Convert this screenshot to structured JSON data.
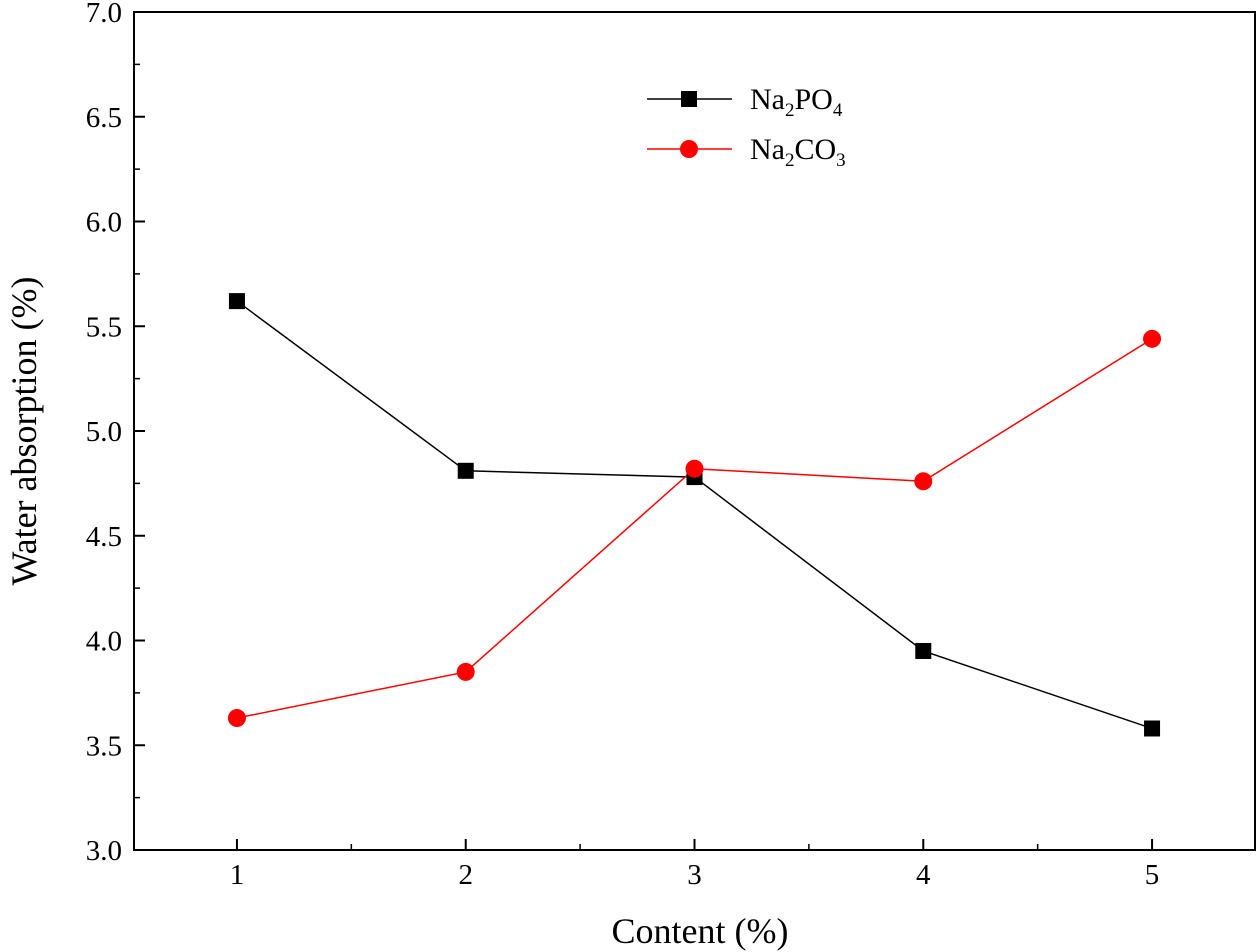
{
  "chart_data": {
    "type": "line",
    "xlabel": "Content (%)",
    "ylabel": "Water absorption (%)",
    "xlim": [
      0.55,
      5.45
    ],
    "ylim": [
      3.0,
      7.0
    ],
    "x": [
      1,
      2,
      3,
      4,
      5
    ],
    "x_ticks": [
      "1",
      "2",
      "3",
      "4",
      "5"
    ],
    "y_ticks": [
      "3.0",
      "3.5",
      "4.0",
      "4.5",
      "5.0",
      "5.5",
      "6.0",
      "6.5",
      "7.0"
    ],
    "grid": false,
    "legend_position": "top-center",
    "series": [
      {
        "name": "Na2PO4",
        "legend_main": "Na",
        "legend_sub1": "2",
        "legend_mid": "PO",
        "legend_sub2": "4",
        "marker": "square",
        "color": "#000000",
        "values": [
          5.62,
          4.81,
          4.78,
          3.95,
          3.58
        ]
      },
      {
        "name": "Na2CO3",
        "legend_main": "Na",
        "legend_sub1": "2",
        "legend_mid": "CO",
        "legend_sub2": "3",
        "marker": "circle",
        "color": "#ff0000",
        "values": [
          3.63,
          3.85,
          4.82,
          4.76,
          5.44
        ]
      }
    ]
  }
}
